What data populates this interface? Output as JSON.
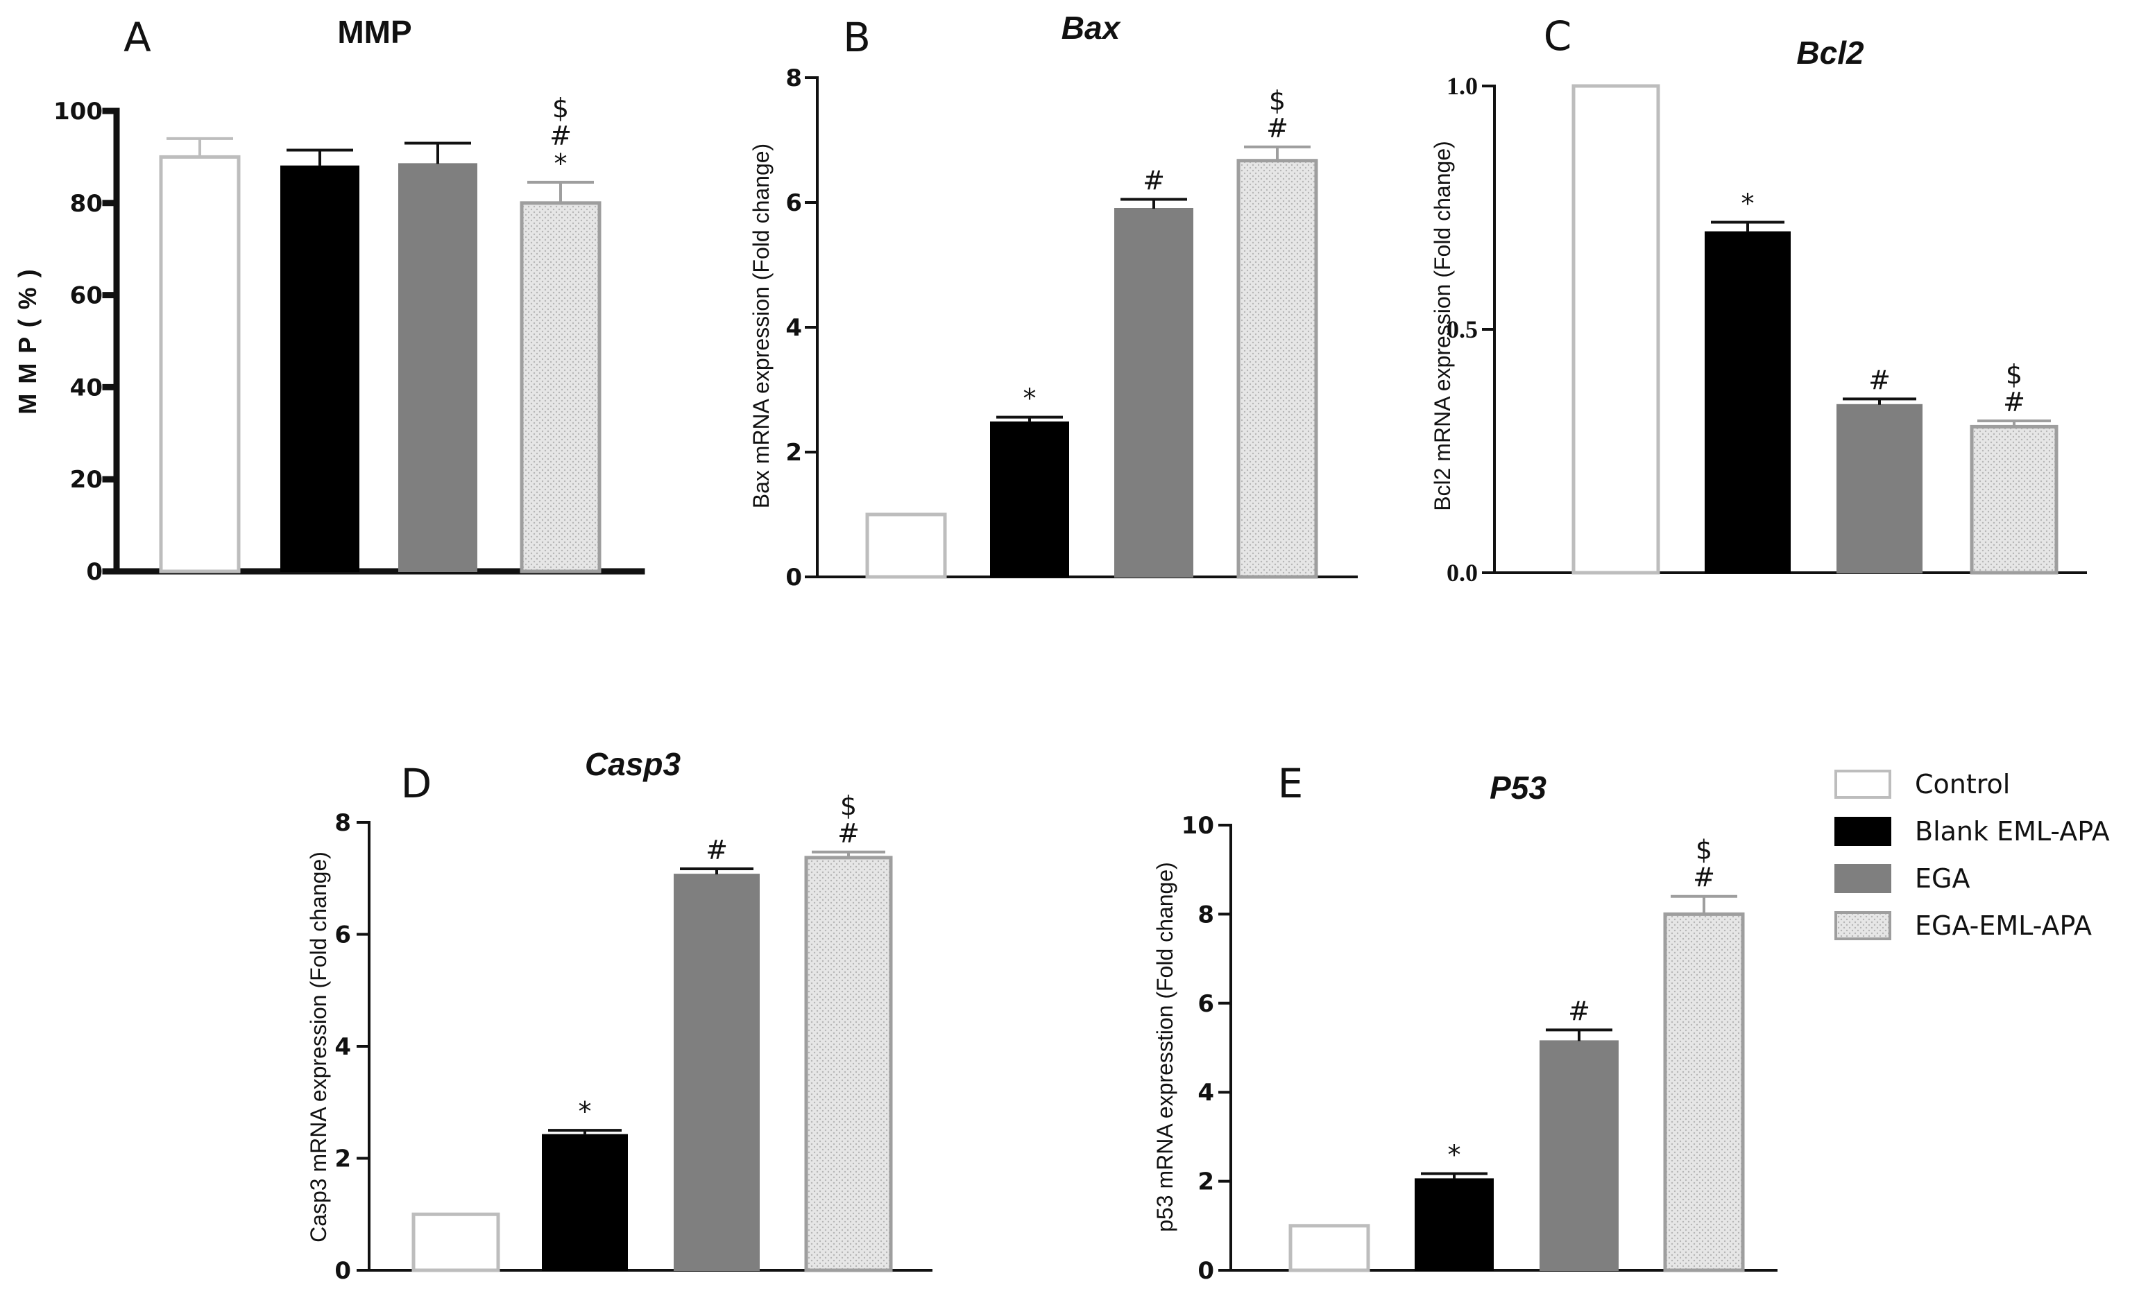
{
  "figure": {
    "legend": [
      {
        "label": "Control",
        "style": "control"
      },
      {
        "label": "Blank EML-APA",
        "style": "blank"
      },
      {
        "label": "EGA",
        "style": "ega"
      },
      {
        "label": "EGA-EML-APA",
        "style": "egaeml"
      }
    ],
    "colors": {
      "control_fill": "#ffffff",
      "control_stroke": "#bdbdbd",
      "blank_fill": "#000000",
      "ega_fill": "#7f7f7f",
      "egaeml_fill": "#e6e6e6",
      "egaeml_stroke": "#9e9e9e",
      "axis": "#111111"
    }
  },
  "chart_data": [
    {
      "panel": "A",
      "type": "bar",
      "title": "MMP",
      "title_italic": false,
      "ylabel": "M M P  ( % )",
      "categories": [
        "Control",
        "Blank EML-APA",
        "EGA",
        "EGA-EML-APA"
      ],
      "values": [
        90,
        88,
        88.5,
        80
      ],
      "errors": [
        4,
        3.5,
        4.5,
        4.5
      ],
      "ylim": [
        0,
        100
      ],
      "yticks": [
        "0",
        "20",
        "40",
        "60",
        "80",
        "100"
      ],
      "annotations": [
        [],
        [],
        [],
        [
          "$",
          "#",
          "*"
        ]
      ]
    },
    {
      "panel": "B",
      "type": "bar",
      "title": "Bax",
      "title_italic": true,
      "ylabel": "Bax mRNA expression (Fold change)",
      "categories": [
        "Control",
        "Blank EML-APA",
        "EGA",
        "EGA-EML-APA"
      ],
      "values": [
        1.0,
        2.48,
        5.9,
        6.67
      ],
      "errors": [
        0,
        0.08,
        0.15,
        0.22
      ],
      "ylim": [
        0,
        8
      ],
      "yticks": [
        "0",
        "2",
        "4",
        "6",
        "8"
      ],
      "annotations": [
        [],
        [
          "*"
        ],
        [
          "#"
        ],
        [
          "$",
          "#"
        ]
      ]
    },
    {
      "panel": "C",
      "type": "bar",
      "title": "Bcl2",
      "title_italic": true,
      "ylabel": "Bcl2 mRNA expression (Fold change)",
      "categories": [
        "Control",
        "Blank EML-APA",
        "EGA",
        "EGA-EML-APA"
      ],
      "values": [
        1.0,
        0.7,
        0.345,
        0.3
      ],
      "errors": [
        0,
        0.02,
        0.012,
        0.012
      ],
      "ylim": [
        0,
        1.0
      ],
      "yticks": [
        "0.0",
        "0.5",
        "1.0"
      ],
      "annotations": [
        [],
        [
          "*"
        ],
        [
          "#"
        ],
        [
          "$",
          "#"
        ]
      ]
    },
    {
      "panel": "D",
      "type": "bar",
      "title": "Casp3",
      "title_italic": true,
      "ylabel": "Casp3 mRNA expression (Fold change)",
      "categories": [
        "Control",
        "Blank EML-APA",
        "EGA",
        "EGA-EML-APA"
      ],
      "values": [
        1.0,
        2.42,
        7.07,
        7.37
      ],
      "errors": [
        0,
        0.08,
        0.1,
        0.1
      ],
      "ylim": [
        0,
        8
      ],
      "yticks": [
        "0",
        "2",
        "4",
        "6",
        "8"
      ],
      "annotations": [
        [],
        [
          "*"
        ],
        [
          "#"
        ],
        [
          "$",
          "#"
        ]
      ]
    },
    {
      "panel": "E",
      "type": "bar",
      "title": "P53",
      "title_italic": true,
      "ylabel": "p53 mRNA expresstion (Fold change)",
      "categories": [
        "Control",
        "Blank EML-APA",
        "EGA",
        "EGA-EML-APA"
      ],
      "values": [
        1.0,
        2.05,
        5.15,
        8.0
      ],
      "errors": [
        0,
        0.12,
        0.25,
        0.4
      ],
      "ylim": [
        0,
        10
      ],
      "yticks": [
        "0",
        "2",
        "4",
        "6",
        "8",
        "10"
      ],
      "annotations": [
        [],
        [
          "*"
        ],
        [
          "#"
        ],
        [
          "$",
          "#"
        ]
      ]
    }
  ]
}
